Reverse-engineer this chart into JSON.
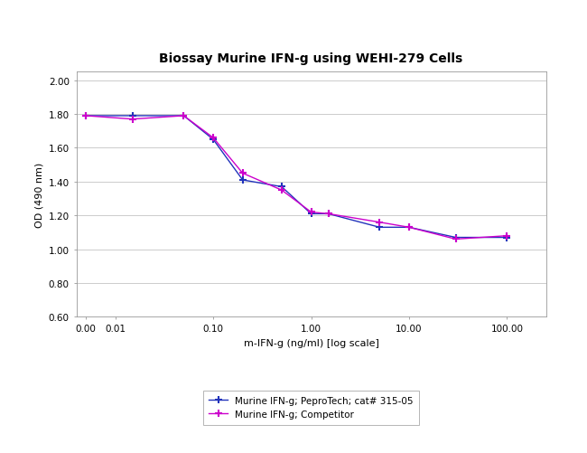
{
  "title": "Biossay Murine IFN-g using WEHI-279 Cells",
  "xlabel": "m-IFN-g (ng/ml) [log scale]",
  "ylabel": "OD (490 nm)",
  "ylim": [
    0.6,
    2.05
  ],
  "yticks": [
    0.6,
    0.8,
    1.0,
    1.2,
    1.4,
    1.6,
    1.8,
    2.0
  ],
  "xtick_labels": [
    "0.00",
    "0.01",
    "0.10",
    "1.00",
    "10.00",
    "100.00"
  ],
  "xtick_values": [
    0.005,
    0.01,
    0.1,
    1.0,
    10.0,
    100.0
  ],
  "xmin": 0.004,
  "xmax": 250.0,
  "series1": {
    "label": "Murine IFN-g; PeproTech; cat# 315-05",
    "color": "#2233bb",
    "marker": "+",
    "x": [
      0.005,
      0.015,
      0.05,
      0.1,
      0.2,
      0.5,
      1.0,
      1.5,
      5.0,
      10.0,
      30.0,
      100.0
    ],
    "y": [
      1.79,
      1.79,
      1.79,
      1.65,
      1.41,
      1.37,
      1.21,
      1.21,
      1.13,
      1.13,
      1.07,
      1.07
    ]
  },
  "series2": {
    "label": "Murine IFN-g; Competitor",
    "color": "#cc00cc",
    "marker": "+",
    "x": [
      0.005,
      0.015,
      0.05,
      0.1,
      0.2,
      0.5,
      1.0,
      1.5,
      5.0,
      10.0,
      30.0,
      100.0
    ],
    "y": [
      1.79,
      1.77,
      1.79,
      1.66,
      1.45,
      1.35,
      1.22,
      1.21,
      1.16,
      1.13,
      1.06,
      1.08
    ]
  },
  "background_color": "#ffffff",
  "plot_bg_color": "#ffffff",
  "grid_color": "#cccccc",
  "legend_fontsize": 7.5,
  "title_fontsize": 10,
  "axis_fontsize": 8,
  "tick_fontsize": 7.5
}
